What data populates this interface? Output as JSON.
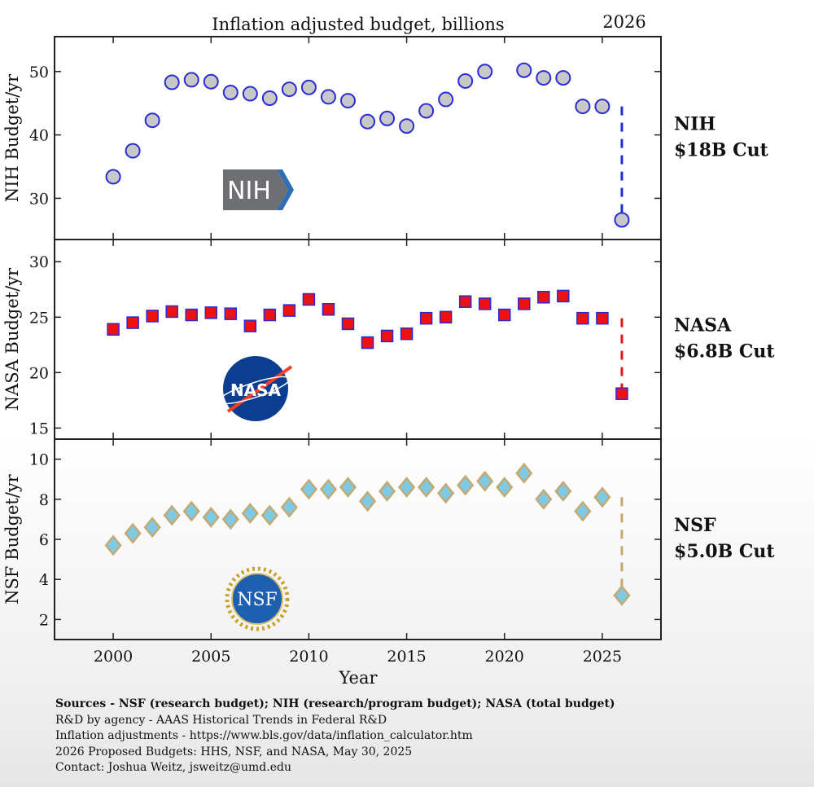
{
  "chart_data": {
    "type": "scatter",
    "title": "Inflation adjusted budget, billions",
    "highlight_year_label": "2026",
    "xlabel": "Year",
    "xlim": [
      1997,
      2028
    ],
    "xticks": [
      2000,
      2005,
      2010,
      2015,
      2020,
      2025
    ],
    "panels": [
      {
        "name": "NIH",
        "ylabel": "NIH Budget/yr",
        "ylim": [
          23.5,
          55.5
        ],
        "yticks": [
          30,
          40,
          50
        ],
        "marker": "circle",
        "marker_fill": "#c8c8c8",
        "marker_edge": "#2a2ad6",
        "line_color": "#1f2fd0",
        "logo_text": "NIH",
        "cut_label": [
          "NIH",
          "$18B Cut"
        ],
        "x": [
          2000,
          2001,
          2002,
          2003,
          2004,
          2005,
          2006,
          2007,
          2008,
          2009,
          2010,
          2011,
          2012,
          2013,
          2014,
          2015,
          2016,
          2017,
          2018,
          2019,
          2021,
          2022,
          2023,
          2024,
          2025
        ],
        "values": [
          33.4,
          37.5,
          42.3,
          48.3,
          48.7,
          48.4,
          46.7,
          46.5,
          45.8,
          47.2,
          47.5,
          46.0,
          45.4,
          42.1,
          42.6,
          41.4,
          43.8,
          45.6,
          48.5,
          50.0,
          50.2,
          49.0,
          49.0,
          44.5,
          44.5
        ],
        "projected": {
          "x": 2026,
          "from": 44.5,
          "to": 26.6
        }
      },
      {
        "name": "NASA",
        "ylabel": "NASA Budget/yr",
        "ylim": [
          14,
          32
        ],
        "yticks": [
          15,
          20,
          25,
          30
        ],
        "marker": "square",
        "marker_fill": "#ee1111",
        "marker_edge": "#2a2ad6",
        "line_color": "#e01818",
        "logo_text": "NASA",
        "cut_label": [
          "NASA",
          "$6.8B Cut"
        ],
        "x": [
          2000,
          2001,
          2002,
          2003,
          2004,
          2005,
          2006,
          2007,
          2008,
          2009,
          2010,
          2011,
          2012,
          2013,
          2014,
          2015,
          2016,
          2017,
          2018,
          2019,
          2020,
          2021,
          2022,
          2023,
          2024,
          2025
        ],
        "values": [
          23.9,
          24.5,
          25.1,
          25.5,
          25.2,
          25.4,
          25.3,
          24.2,
          25.2,
          25.6,
          26.6,
          25.7,
          24.4,
          22.7,
          23.3,
          23.5,
          24.9,
          25.0,
          26.4,
          26.2,
          25.2,
          26.2,
          26.8,
          26.9,
          24.9,
          24.9
        ],
        "projected": {
          "x": 2026,
          "from": 24.9,
          "to": 18.1
        }
      },
      {
        "name": "NSF",
        "ylabel": "NSF Budget/yr",
        "ylim": [
          1,
          11
        ],
        "yticks": [
          2,
          4,
          6,
          8,
          10
        ],
        "marker": "diamond",
        "marker_fill": "#7ec9e4",
        "marker_edge": "#c4aa72",
        "line_color": "#c4aa72",
        "logo_text": "NSF",
        "cut_label": [
          "NSF",
          "$5.0B Cut"
        ],
        "x": [
          2000,
          2001,
          2002,
          2003,
          2004,
          2005,
          2006,
          2007,
          2008,
          2009,
          2010,
          2011,
          2012,
          2013,
          2014,
          2015,
          2016,
          2017,
          2018,
          2019,
          2020,
          2021,
          2022,
          2023,
          2024,
          2025
        ],
        "values": [
          5.7,
          6.3,
          6.6,
          7.2,
          7.4,
          7.1,
          7.0,
          7.3,
          7.2,
          7.6,
          8.5,
          8.5,
          8.6,
          7.9,
          8.4,
          8.6,
          8.6,
          8.3,
          8.7,
          8.9,
          8.6,
          9.3,
          8.0,
          8.4,
          7.4,
          8.1
        ],
        "projected": {
          "x": 2026,
          "from": 8.1,
          "to": 3.2
        }
      }
    ]
  },
  "sources": {
    "line1": "Sources - NSF (research budget); NIH (research/program budget); NASA (total budget)",
    "line2": "R&D by agency - AAAS Historical Trends in Federal R&D",
    "line3": "Inflation adjustments - https://www.bls.gov/data/inflation_calculator.htm",
    "line4": "2026 Proposed Budgets: HHS, NSF, and NASA, May 30, 2025",
    "line5": "Contact: Joshua Weitz, jsweitz@umd.edu"
  }
}
